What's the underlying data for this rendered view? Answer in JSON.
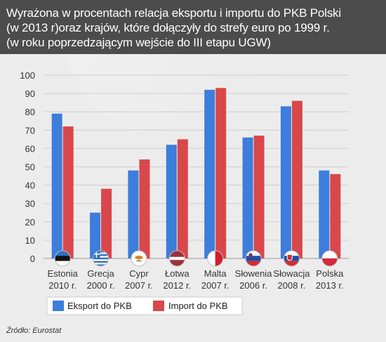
{
  "title": "Wyrażona w procentach relacja eksportu i importu do PKB Polski\n(w 2013 r)oraz krajów, które dołączyły do strefy euro po 1999 r.\n(w roku poprzedzającym wejście do III etapu UGW)",
  "source": "Źródło: Eurostat",
  "colors": {
    "export": "#3d7ddb",
    "import": "#d9474b",
    "title_band": "#4c4c4c",
    "background": "#ececec"
  },
  "chart_data": {
    "type": "bar",
    "title": "Wyrażona w procentach relacja eksportu i importu do PKB Polski (w 2013 r)oraz krajów, które dołączyły do strefy euro po 1999 r. (w roku poprzedzającym wejście do III etapu UGW)",
    "categories": [
      {
        "name": "Estonia",
        "year": "2010 r.",
        "flag": "estonia-flag-icon"
      },
      {
        "name": "Grecja",
        "year": "2000 r.",
        "flag": "greece-flag-icon"
      },
      {
        "name": "Cypr",
        "year": "2007 r.",
        "flag": "cyprus-flag-icon"
      },
      {
        "name": "Łotwa",
        "year": "2012 r.",
        "flag": "latvia-flag-icon"
      },
      {
        "name": "Malta",
        "year": "2007 r.",
        "flag": "malta-flag-icon"
      },
      {
        "name": "Słowenia",
        "year": "2006 r.",
        "flag": "slovenia-flag-icon"
      },
      {
        "name": "Słowacja",
        "year": "2008 r.",
        "flag": "slovakia-flag-icon"
      },
      {
        "name": "Polska",
        "year": "2013 r.",
        "flag": "poland-flag-icon"
      }
    ],
    "series": [
      {
        "name": "Eksport do PKB",
        "values": [
          79,
          25,
          48,
          62,
          92,
          66,
          83,
          48
        ]
      },
      {
        "name": "Import do PKB",
        "values": [
          72,
          38,
          54,
          65,
          93,
          67,
          86,
          46
        ]
      }
    ],
    "ylim": [
      0,
      100
    ],
    "yticks": [
      0,
      10,
      20,
      30,
      40,
      50,
      60,
      70,
      80,
      90,
      100
    ],
    "grid": true,
    "legend_placement": "bottom-left"
  }
}
